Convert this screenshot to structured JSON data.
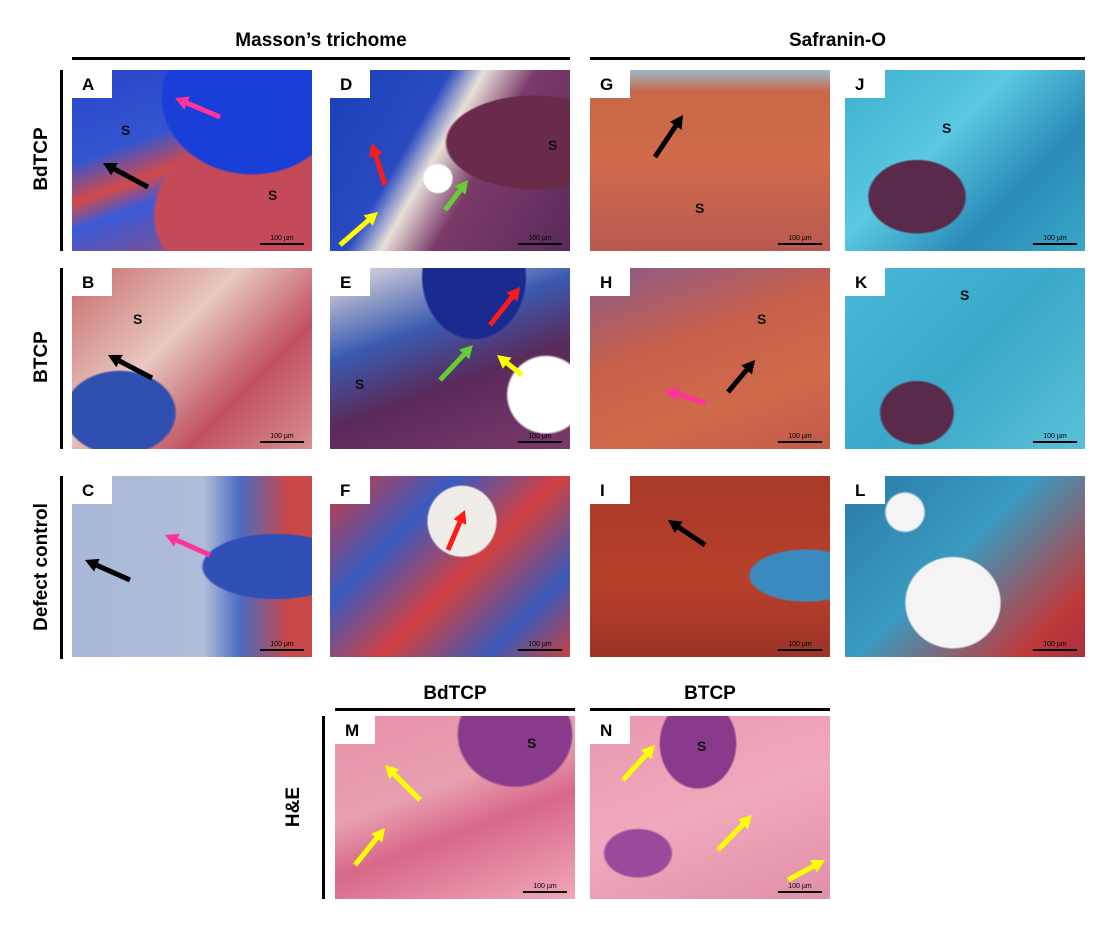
{
  "headers": {
    "masson": "Masson’s trichome",
    "safranin": "Safranin-O",
    "bdtcp": "BdTCP",
    "btcp": "BTCP"
  },
  "row_labels": {
    "bdtcp": "BdTCP",
    "btcp": "BTCP",
    "defect": "Defect control",
    "he": "H&E"
  },
  "s_label": "S",
  "scale_bar": "100 µm",
  "arrow_colors": {
    "black": "#000000",
    "pink": "#ff3399",
    "red": "#ff1a1a",
    "yellow": "#ffff00",
    "green": "#66cc33"
  },
  "panels": [
    {
      "letter": "A"
    },
    {
      "letter": "D"
    },
    {
      "letter": "G"
    },
    {
      "letter": "J"
    },
    {
      "letter": "B"
    },
    {
      "letter": "E"
    },
    {
      "letter": "H"
    },
    {
      "letter": "K"
    },
    {
      "letter": "C"
    },
    {
      "letter": "F"
    },
    {
      "letter": "I"
    },
    {
      "letter": "L"
    },
    {
      "letter": "M"
    },
    {
      "letter": "N"
    }
  ]
}
